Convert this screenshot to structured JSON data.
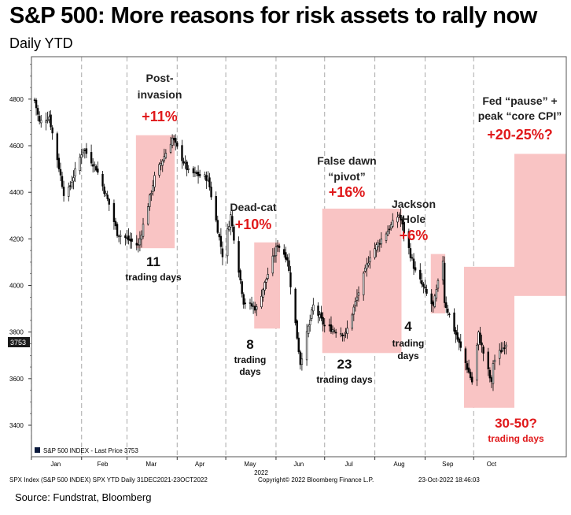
{
  "header": {
    "title": "S&P 500: More reasons for risk assets to rally now",
    "subtitle": "Daily YTD"
  },
  "footer": {
    "bloomberg_left": "SPX Index (S&P 500 INDEX) SPX YTD  Daily 31DEC2021-23OCT2022",
    "bloomberg_center": "Copyright© 2022 Bloomberg Finance L.P.",
    "bloomberg_right": "23-Oct-2022 18:46:03",
    "source": "Source: Fundstrat, Bloomberg"
  },
  "legend": {
    "label": "S&P 500 INDEX - Last Price 3753"
  },
  "last_price": {
    "label": "3753",
    "value": 3753
  },
  "colors": {
    "highlight": "#f9c4c4",
    "accent_red": "#e0191b",
    "candle": "#000000",
    "grid": "#aaaaaa"
  },
  "chart_data": {
    "type": "candlestick",
    "title": "S&P 500: More reasons for risk assets to rally now",
    "subtitle": "Daily YTD",
    "x_tick_labels": [
      "Jan",
      "Feb",
      "Mar",
      "Apr",
      "May",
      "Jun",
      "Jul",
      "Aug",
      "Sep",
      "Oct"
    ],
    "x_year_label": "2022",
    "y_tick_labels": [
      "3400",
      "3600",
      "3800",
      "4000",
      "4200",
      "4400",
      "4600",
      "4800"
    ],
    "ylim": [
      3260,
      4880
    ],
    "grid": true,
    "legend_position": "bottom-left",
    "series": [
      {
        "name": "S&P 500 INDEX - Last Price 3753",
        "approx_close_path": [
          {
            "date": "2022-01-03",
            "close": 4796
          },
          {
            "date": "2022-01-06",
            "close": 4700
          },
          {
            "date": "2022-01-12",
            "close": 4726
          },
          {
            "date": "2022-01-21",
            "close": 4398
          },
          {
            "date": "2022-01-24",
            "close": 4410
          },
          {
            "date": "2022-02-02",
            "close": 4589
          },
          {
            "date": "2022-02-10",
            "close": 4504
          },
          {
            "date": "2022-02-18",
            "close": 4349
          },
          {
            "date": "2022-02-23",
            "close": 4225
          },
          {
            "date": "2022-03-08",
            "close": 4171
          },
          {
            "date": "2022-03-18",
            "close": 4463
          },
          {
            "date": "2022-03-29",
            "close": 4632
          },
          {
            "date": "2022-04-08",
            "close": 4488
          },
          {
            "date": "2022-04-20",
            "close": 4460
          },
          {
            "date": "2022-04-29",
            "close": 4132
          },
          {
            "date": "2022-05-04",
            "close": 4300
          },
          {
            "date": "2022-05-12",
            "close": 3930
          },
          {
            "date": "2022-05-20",
            "close": 3901
          },
          {
            "date": "2022-06-02",
            "close": 4177
          },
          {
            "date": "2022-06-08",
            "close": 4116
          },
          {
            "date": "2022-06-16",
            "close": 3667
          },
          {
            "date": "2022-06-24",
            "close": 3912
          },
          {
            "date": "2022-07-01",
            "close": 3825
          },
          {
            "date": "2022-07-14",
            "close": 3790
          },
          {
            "date": "2022-07-29",
            "close": 4130
          },
          {
            "date": "2022-08-16",
            "close": 4305
          },
          {
            "date": "2022-08-26",
            "close": 4058
          },
          {
            "date": "2022-09-06",
            "close": 3908
          },
          {
            "date": "2022-09-12",
            "close": 4110
          },
          {
            "date": "2022-09-13",
            "close": 3932
          },
          {
            "date": "2022-09-30",
            "close": 3586
          },
          {
            "date": "2022-10-04",
            "close": 3791
          },
          {
            "date": "2022-10-12",
            "close": 3577
          },
          {
            "date": "2022-10-13",
            "close": 3670
          },
          {
            "date": "2022-10-21",
            "close": 3753
          }
        ]
      }
    ],
    "annotations": [
      {
        "id": "post-invasion",
        "start": "2022-03-08",
        "end": "2022-03-29",
        "low": 4160,
        "high": 4645,
        "label_lines": [
          "Post-",
          "invasion"
        ],
        "gain": "+11%",
        "duration_lines": [
          "11",
          "trading days"
        ]
      },
      {
        "id": "dead-cat",
        "start": "2022-05-20",
        "end": "2022-06-02",
        "low": 3815,
        "high": 4185,
        "label_lines": [
          "Dead-cat"
        ],
        "gain": "+10%",
        "duration_lines": [
          "8",
          "trading",
          "days"
        ]
      },
      {
        "id": "false-dawn",
        "start": "2022-07-01",
        "end": "2022-08-16",
        "low": 3710,
        "high": 4330,
        "label_lines": [
          "False dawn",
          "“pivot”"
        ],
        "gain": "+16%",
        "duration_lines": [
          "23",
          "trading days"
        ]
      },
      {
        "id": "jackson-hole",
        "start": "2022-09-06",
        "end": "2022-09-12",
        "low": 3880,
        "high": 4135,
        "label_lines": [
          "Jackson",
          "Hole"
        ],
        "gain": "+6%",
        "duration_lines": [
          "4",
          "trading",
          "days"
        ]
      },
      {
        "id": "fed-pause",
        "projected": true,
        "label_lines": [
          "Fed “pause” +",
          "peak “core CPI”"
        ],
        "gain": "+20-25%?",
        "duration_lines": [
          "30-50?",
          "trading days"
        ],
        "block1": {
          "low": 3475,
          "high": 4080
        },
        "block2": {
          "low": 3955,
          "high": 4565
        }
      }
    ]
  }
}
